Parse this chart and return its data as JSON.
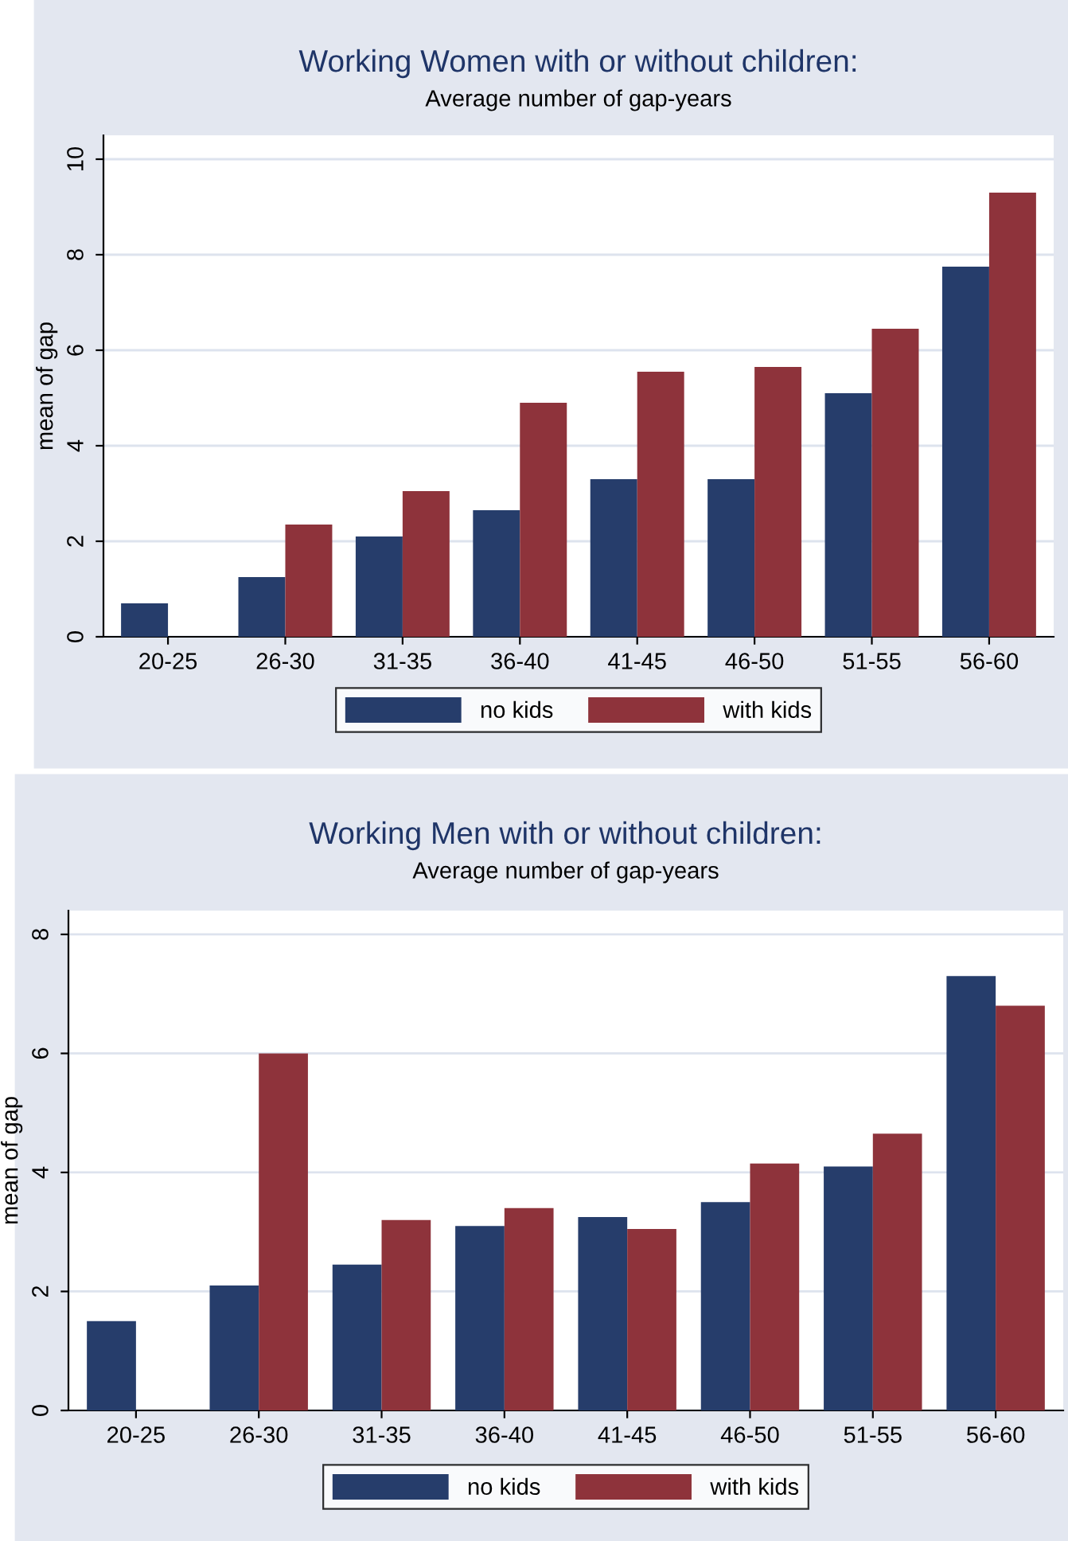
{
  "chart_data": [
    {
      "type": "bar",
      "title": "Working Women with or without children:",
      "subtitle": "Average number of gap-years",
      "ylabel": "mean of gap",
      "categories": [
        "20-25",
        "26-30",
        "31-35",
        "36-40",
        "41-45",
        "46-50",
        "51-55",
        "56-60"
      ],
      "series": [
        {
          "name": "no kids",
          "color": "#263d6b",
          "values": [
            0.7,
            1.25,
            2.1,
            2.65,
            3.3,
            3.3,
            5.1,
            7.75
          ]
        },
        {
          "name": "with kids",
          "color": "#8e333b",
          "values": [
            null,
            2.35,
            3.05,
            4.9,
            5.55,
            5.65,
            6.45,
            9.3
          ]
        }
      ],
      "ylim": [
        0,
        10.5
      ],
      "yticks": [
        0,
        2,
        4,
        6,
        8,
        10
      ],
      "grid": "y",
      "legend": "bottom"
    },
    {
      "type": "bar",
      "title": "Working Men with or without children:",
      "subtitle": "Average number of gap-years",
      "ylabel": "mean of gap",
      "categories": [
        "20-25",
        "26-30",
        "31-35",
        "36-40",
        "41-45",
        "46-50",
        "51-55",
        "56-60"
      ],
      "series": [
        {
          "name": "no kids",
          "color": "#263d6b",
          "values": [
            1.5,
            2.1,
            2.45,
            3.1,
            3.25,
            3.5,
            4.1,
            7.3
          ]
        },
        {
          "name": "with kids",
          "color": "#8e333b",
          "values": [
            null,
            6.0,
            3.2,
            3.4,
            3.05,
            4.15,
            4.65,
            6.8
          ]
        }
      ],
      "ylim": [
        0,
        8.4
      ],
      "yticks": [
        0,
        2,
        4,
        6,
        8
      ],
      "grid": "y",
      "legend": "bottom"
    }
  ]
}
